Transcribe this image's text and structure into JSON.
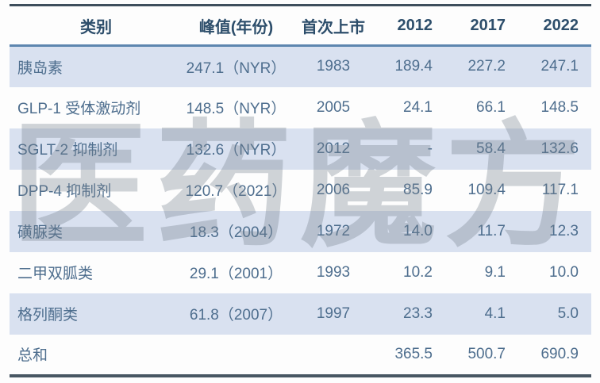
{
  "watermark": {
    "text": "医药魔方"
  },
  "chart_data": {
    "type": "table",
    "columns": [
      "类别",
      "峰值(年份)",
      "首次上市",
      "2012",
      "2017",
      "2022"
    ],
    "rows": [
      [
        "胰岛素",
        "247.1（NYR）",
        "1983",
        "189.4",
        "227.2",
        "247.1"
      ],
      [
        "GLP-1 受体激动剂",
        "148.5（NYR）",
        "2005",
        "24.1",
        "66.1",
        "148.5"
      ],
      [
        "SGLT-2 抑制剂",
        "132.6（NYR）",
        "2012",
        "-",
        "58.4",
        "132.6"
      ],
      [
        "DPP-4 抑制剂",
        "120.7（2021）",
        "2006",
        "85.9",
        "109.4",
        "117.1"
      ],
      [
        "磺脲类",
        "18.3（2004）",
        "1972",
        "14.0",
        "11.7",
        "12.3"
      ],
      [
        "二甲双胍类",
        "29.1（2001）",
        "1993",
        "10.2",
        "9.1",
        "10.0"
      ],
      [
        "格列酮类",
        "61.8（2007）",
        "1997",
        "23.3",
        "4.1",
        "5.0"
      ],
      [
        "总和",
        "",
        "",
        "365.5",
        "500.7",
        "690.9"
      ]
    ],
    "layout_hints": {
      "striped": true,
      "stripe_rows": "odd",
      "numeric_columns_align": "right",
      "category_column_align": "left"
    },
    "watermark": "医药魔方"
  },
  "colors": {
    "stripe_blue": "#d9e1f0",
    "header_text": "#2d4e6b",
    "body_text": "#4e6e8e",
    "top_border": "#3e4e5c",
    "bottom_border": "#485763",
    "header_underline": "#5d86af",
    "watermark_gray": "#76808e"
  }
}
